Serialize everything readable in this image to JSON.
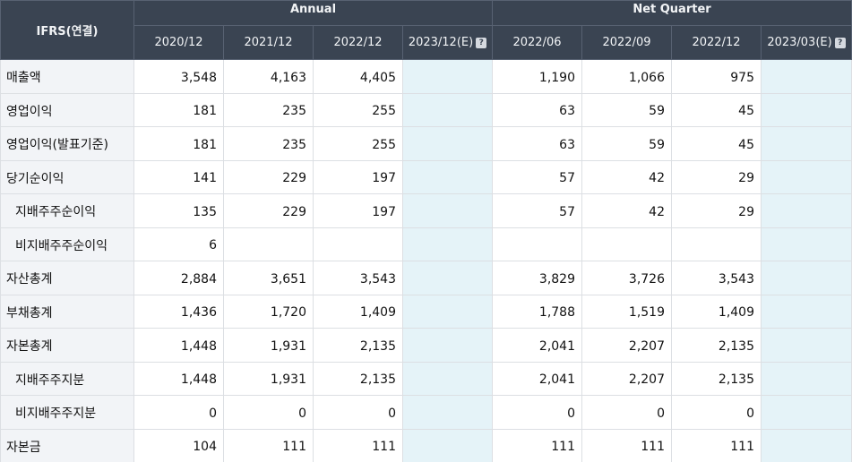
{
  "header": {
    "corner": "IFRS(연결)",
    "groups": {
      "annual": "Annual",
      "quarter": "Net Quarter"
    },
    "periods": [
      "2020/12",
      "2021/12",
      "2022/12",
      "2023/12(E)",
      "2022/06",
      "2022/09",
      "2022/12",
      "2023/03(E)"
    ],
    "help_glyph": "?"
  },
  "rows": [
    {
      "label": "매출액",
      "values": [
        "3,548",
        "4,163",
        "4,405",
        "",
        "1,190",
        "1,066",
        "975",
        ""
      ]
    },
    {
      "label": "영업이익",
      "values": [
        "181",
        "235",
        "255",
        "",
        "63",
        "59",
        "45",
        ""
      ]
    },
    {
      "label": "영업이익(발표기준)",
      "values": [
        "181",
        "235",
        "255",
        "",
        "63",
        "59",
        "45",
        ""
      ]
    },
    {
      "label": "당기순이익",
      "values": [
        "141",
        "229",
        "197",
        "",
        "57",
        "42",
        "29",
        ""
      ]
    },
    {
      "label": "지배주주순이익",
      "values": [
        "135",
        "229",
        "197",
        "",
        "57",
        "42",
        "29",
        ""
      ]
    },
    {
      "label": "비지배주주순이익",
      "values": [
        "6",
        "",
        "",
        "",
        "",
        "",
        "",
        ""
      ]
    },
    {
      "label": "자산총계",
      "values": [
        "2,884",
        "3,651",
        "3,543",
        "",
        "3,829",
        "3,726",
        "3,543",
        ""
      ]
    },
    {
      "label": "부채총계",
      "values": [
        "1,436",
        "1,720",
        "1,409",
        "",
        "1,788",
        "1,519",
        "1,409",
        ""
      ]
    },
    {
      "label": "자본총계",
      "values": [
        "1,448",
        "1,931",
        "2,135",
        "",
        "2,041",
        "2,207",
        "2,135",
        ""
      ]
    },
    {
      "label": "지배주주지분",
      "values": [
        "1,448",
        "1,931",
        "2,135",
        "",
        "2,041",
        "2,207",
        "2,135",
        ""
      ]
    },
    {
      "label": "비지배주주지분",
      "values": [
        "0",
        "0",
        "0",
        "",
        "0",
        "0",
        "0",
        ""
      ]
    },
    {
      "label": "자본금",
      "values": [
        "104",
        "111",
        "111",
        "",
        "111",
        "111",
        "111",
        ""
      ]
    }
  ],
  "colors": {
    "header_bg": "#3a4452",
    "header_text": "#f2f4f6",
    "label_bg": "#f2f4f7",
    "estimate_bg": "#e5f3f8",
    "border": "#dcdfe3"
  },
  "icons": {
    "estimate_help": "help-icon"
  }
}
